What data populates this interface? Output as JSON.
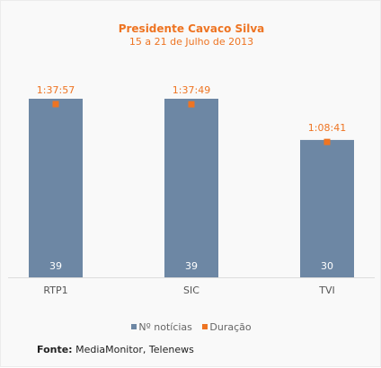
{
  "chart_data": {
    "type": "bar",
    "title": "Presidente Cavaco Silva",
    "subtitle": "15 a 21 de Julho de 2013",
    "categories": [
      "RTP1",
      "SIC",
      "TVI"
    ],
    "series": [
      {
        "name": "Nº notícias",
        "type": "bar",
        "values": [
          39,
          39,
          30
        ],
        "value_labels": [
          "39",
          "39",
          "30"
        ],
        "color": "#6d87a4"
      },
      {
        "name": "Duração",
        "type": "marker",
        "values": [
          "1:37:57",
          "1:37:49",
          "1:08:41"
        ],
        "color": "#ee7422"
      }
    ],
    "ylim": [
      0,
      39
    ],
    "legend_position": "bottom",
    "grid": false
  },
  "source": {
    "label": "Fonte:",
    "text": " MediaMonitor, Telenews"
  }
}
